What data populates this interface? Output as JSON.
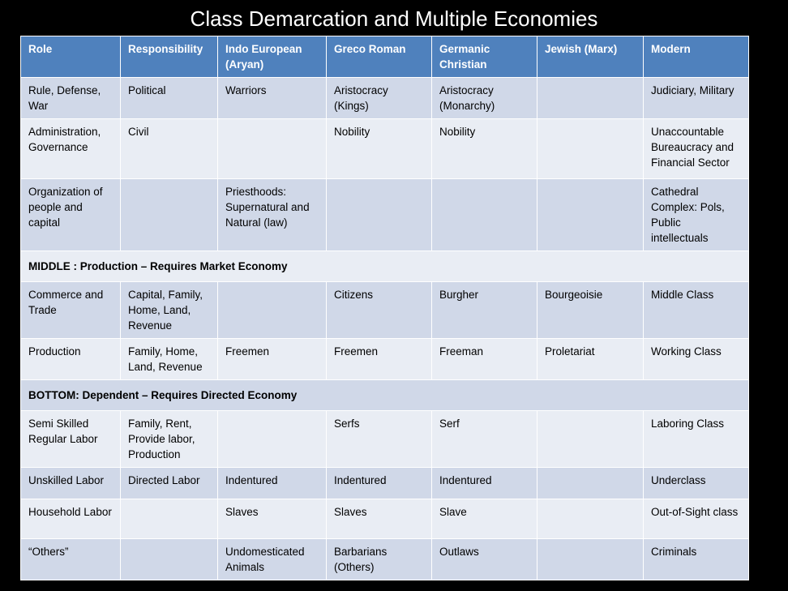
{
  "title": "Class Demarcation and Multiple Economies",
  "table": {
    "header": [
      "Role",
      "Responsibility",
      "Indo European (Aryan)",
      "Greco Roman",
      "Germanic Christian",
      "Jewish (Marx)",
      "Modern"
    ],
    "rows": [
      [
        "Rule, Defense, War",
        "Political",
        "Warriors",
        "Aristocracy (Kings)",
        "Aristocracy (Monarchy)",
        null,
        "Judiciary, Military"
      ],
      [
        "Administration, Governance",
        "Civil",
        null,
        "Nobility",
        "Nobility",
        null,
        "Unaccountable Bureaucracy and Financial Sector"
      ],
      [
        "Organization of people and capital",
        null,
        "Priesthoods: Supernatural and Natural (law)",
        null,
        null,
        null,
        "Cathedral Complex: Pols, Public intellectuals"
      ],
      [
        "MIDDLE : Production – Requires Market Economy"
      ],
      [
        "Commerce and Trade",
        "Capital, Family, Home, Land, Revenue",
        null,
        "Citizens",
        "Burgher",
        "Bourgeoisie",
        "Middle Class"
      ],
      [
        "Production",
        "Family, Home, Land, Revenue",
        "Freemen",
        "Freemen",
        "Freeman",
        "Proletariat",
        "Working Class"
      ],
      [
        "BOTTOM: Dependent – Requires Directed Economy"
      ],
      [
        "Semi Skilled Regular Labor",
        "Family, Rent, Provide labor, Production",
        null,
        "Serfs",
        "Serf",
        null,
        "Laboring Class"
      ],
      [
        "Unskilled Labor",
        "Directed Labor",
        "Indentured",
        "Indentured",
        "Indentured",
        null,
        "Underclass"
      ],
      [
        "Household Labor",
        null,
        "Slaves",
        "Slaves",
        "Slave",
        null,
        "Out-of-Sight class"
      ],
      [
        "“Others”",
        null,
        "Undomesticated Animals",
        "Barbarians (Others)",
        "Outlaws",
        null,
        "Criminals"
      ]
    ]
  }
}
